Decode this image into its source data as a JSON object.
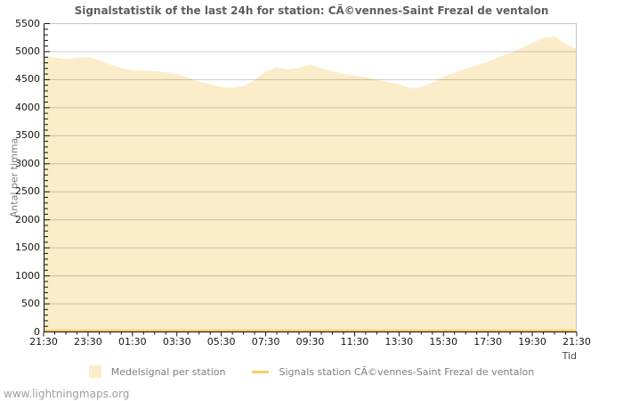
{
  "title": "Signalstatistik of the last 24h for station: CÃ©vennes-Saint Frezal de ventalon",
  "watermark": "www.lightningmaps.org",
  "colors": {
    "area_fill": "#fbedca",
    "line": "#f5cd66",
    "gridline": "#cccccc",
    "frame": "#c8c8c8",
    "axis": "#111111",
    "background": "#ffffff"
  },
  "legend": [
    {
      "type": "area",
      "label": "Medelsignal per station",
      "color": "#fbedca"
    },
    {
      "type": "line",
      "label": "Signals station CÃ©vennes-Saint Frezal de ventalon",
      "color": "#f5cd66"
    }
  ],
  "chart_data": {
    "type": "area",
    "title": "Signalstatistik of the last 24h for station: CÃ©vennes-Saint Frezal de ventalon",
    "xlabel": "Tid",
    "ylabel": "Antal per timma",
    "ylim": [
      0,
      5500
    ],
    "y_major_step": 500,
    "y_minor_step": 100,
    "y_ticks": [
      0,
      500,
      1000,
      1500,
      2000,
      2500,
      3000,
      3500,
      4000,
      4500,
      5000,
      5500
    ],
    "x_tick_labels": [
      "21:30",
      "23:30",
      "01:30",
      "03:30",
      "05:30",
      "07:30",
      "09:30",
      "11:30",
      "13:30",
      "15:30",
      "17:30",
      "19:30",
      "21:30"
    ],
    "x_minor_per_major": 4,
    "grid": true,
    "legend_position": "bottom",
    "x": [
      "21:30",
      "22:00",
      "22:30",
      "23:00",
      "23:30",
      "00:00",
      "00:30",
      "01:00",
      "01:30",
      "02:00",
      "02:30",
      "03:00",
      "03:30",
      "04:00",
      "04:30",
      "05:00",
      "05:30",
      "06:00",
      "06:30",
      "07:00",
      "07:30",
      "08:00",
      "08:30",
      "09:00",
      "09:30",
      "10:00",
      "10:30",
      "11:00",
      "11:30",
      "12:00",
      "12:30",
      "13:00",
      "13:30",
      "14:00",
      "14:30",
      "15:00",
      "15:30",
      "16:00",
      "16:30",
      "17:00",
      "17:30",
      "18:00",
      "18:30",
      "19:00",
      "19:30",
      "20:00",
      "20:30",
      "21:00",
      "21:30"
    ],
    "series": [
      {
        "name": "Medelsignal per station",
        "type": "area",
        "color": "#fbedca",
        "values": [
          4940,
          4890,
          4870,
          4890,
          4905,
          4850,
          4770,
          4710,
          4670,
          4660,
          4655,
          4630,
          4595,
          4540,
          4460,
          4420,
          4370,
          4355,
          4385,
          4490,
          4650,
          4720,
          4680,
          4710,
          4770,
          4700,
          4650,
          4610,
          4570,
          4545,
          4500,
          4460,
          4420,
          4345,
          4370,
          4445,
          4550,
          4625,
          4695,
          4760,
          4820,
          4905,
          4975,
          5060,
          5160,
          5245,
          5270,
          5140,
          5040
        ]
      },
      {
        "name": "Signals station CÃ©vennes-Saint Frezal de ventalon",
        "type": "line",
        "color": "#f5cd66",
        "values": [
          0,
          0,
          0,
          0,
          0,
          0,
          0,
          0,
          0,
          0,
          0,
          0,
          0,
          0,
          0,
          0,
          0,
          0,
          0,
          0,
          0,
          0,
          0,
          0,
          0,
          0,
          0,
          0,
          0,
          0,
          0,
          0,
          0,
          0,
          0,
          0,
          0,
          0,
          0,
          0,
          0,
          0,
          0,
          0,
          0,
          0,
          0,
          0,
          0
        ]
      }
    ]
  }
}
